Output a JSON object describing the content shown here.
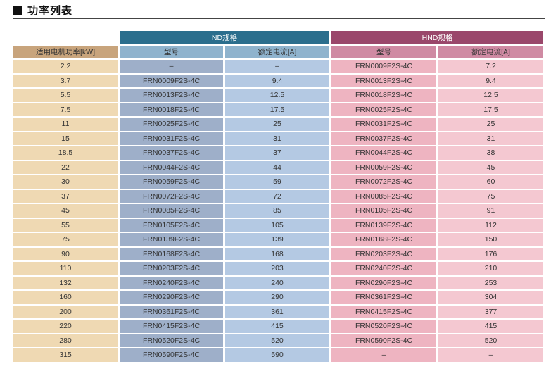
{
  "title": "功率列表",
  "groups": {
    "nd": "ND规格",
    "hnd": "HND规格"
  },
  "headers": {
    "kw": "适用电机功率[kW]",
    "nd_model": "型号",
    "nd_current": "额定电流[A]",
    "hnd_model": "型号",
    "hnd_current": "额定电流[A]"
  },
  "rows": [
    {
      "kw": "2.2",
      "nd_model": "–",
      "nd_current": "–",
      "hnd_model": "FRN0009F2S-4C",
      "hnd_current": "7.2"
    },
    {
      "kw": "3.7",
      "nd_model": "FRN0009F2S-4C",
      "nd_current": "9.4",
      "hnd_model": "FRN0013F2S-4C",
      "hnd_current": "9.4"
    },
    {
      "kw": "5.5",
      "nd_model": "FRN0013F2S-4C",
      "nd_current": "12.5",
      "hnd_model": "FRN0018F2S-4C",
      "hnd_current": "12.5"
    },
    {
      "kw": "7.5",
      "nd_model": "FRN0018F2S-4C",
      "nd_current": "17.5",
      "hnd_model": "FRN0025F2S-4C",
      "hnd_current": "17.5"
    },
    {
      "kw": "11",
      "nd_model": "FRN0025F2S-4C",
      "nd_current": "25",
      "hnd_model": "FRN0031F2S-4C",
      "hnd_current": "25"
    },
    {
      "kw": "15",
      "nd_model": "FRN0031F2S-4C",
      "nd_current": "31",
      "hnd_model": "FRN0037F2S-4C",
      "hnd_current": "31"
    },
    {
      "kw": "18.5",
      "nd_model": "FRN0037F2S-4C",
      "nd_current": "37",
      "hnd_model": "FRN0044F2S-4C",
      "hnd_current": "38"
    },
    {
      "kw": "22",
      "nd_model": "FRN0044F2S-4C",
      "nd_current": "44",
      "hnd_model": "FRN0059F2S-4C",
      "hnd_current": "45"
    },
    {
      "kw": "30",
      "nd_model": "FRN0059F2S-4C",
      "nd_current": "59",
      "hnd_model": "FRN0072F2S-4C",
      "hnd_current": "60"
    },
    {
      "kw": "37",
      "nd_model": "FRN0072F2S-4C",
      "nd_current": "72",
      "hnd_model": "FRN0085F2S-4C",
      "hnd_current": "75"
    },
    {
      "kw": "45",
      "nd_model": "FRN0085F2S-4C",
      "nd_current": "85",
      "hnd_model": "FRN0105F2S-4C",
      "hnd_current": "91"
    },
    {
      "kw": "55",
      "nd_model": "FRN0105F2S-4C",
      "nd_current": "105",
      "hnd_model": "FRN0139F2S-4C",
      "hnd_current": "112"
    },
    {
      "kw": "75",
      "nd_model": "FRN0139F2S-4C",
      "nd_current": "139",
      "hnd_model": "FRN0168F2S-4C",
      "hnd_current": "150"
    },
    {
      "kw": "90",
      "nd_model": "FRN0168F2S-4C",
      "nd_current": "168",
      "hnd_model": "FRN0203F2S-4C",
      "hnd_current": "176"
    },
    {
      "kw": "110",
      "nd_model": "FRN0203F2S-4C",
      "nd_current": "203",
      "hnd_model": "FRN0240F2S-4C",
      "hnd_current": "210"
    },
    {
      "kw": "132",
      "nd_model": "FRN0240F2S-4C",
      "nd_current": "240",
      "hnd_model": "FRN0290F2S-4C",
      "hnd_current": "253"
    },
    {
      "kw": "160",
      "nd_model": "FRN0290F2S-4C",
      "nd_current": "290",
      "hnd_model": "FRN0361F2S-4C",
      "hnd_current": "304"
    },
    {
      "kw": "200",
      "nd_model": "FRN0361F2S-4C",
      "nd_current": "361",
      "hnd_model": "FRN0415F2S-4C",
      "hnd_current": "377"
    },
    {
      "kw": "220",
      "nd_model": "FRN0415F2S-4C",
      "nd_current": "415",
      "hnd_model": "FRN0520F2S-4C",
      "hnd_current": "415"
    },
    {
      "kw": "280",
      "nd_model": "FRN0520F2S-4C",
      "nd_current": "520",
      "hnd_model": "FRN0590F2S-4C",
      "hnd_current": "520"
    },
    {
      "kw": "315",
      "nd_model": "FRN0590F2S-4C",
      "nd_current": "590",
      "hnd_model": "–",
      "hnd_current": "–"
    }
  ]
}
